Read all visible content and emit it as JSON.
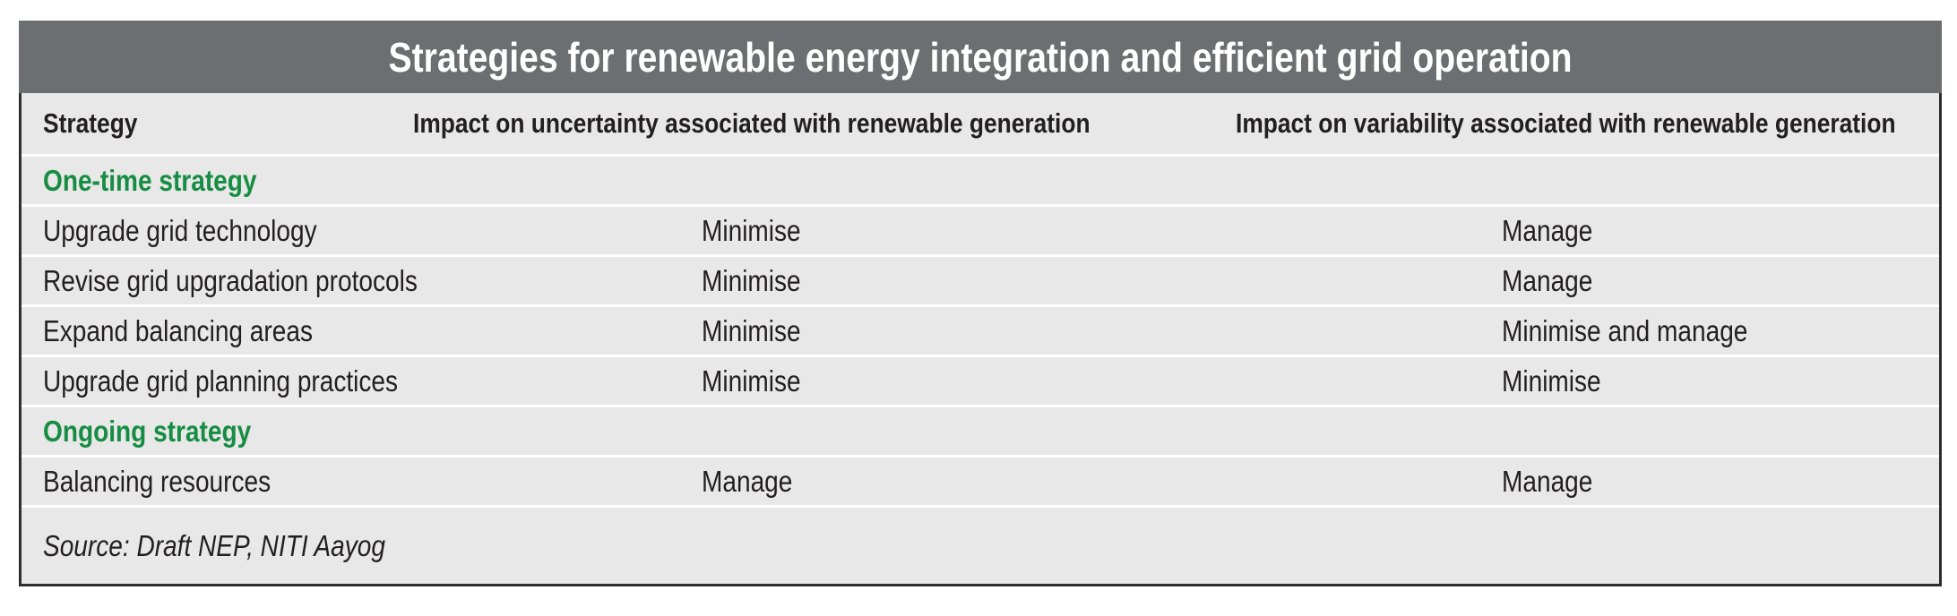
{
  "header": {
    "title": "Strategies for renewable energy integration and efficient grid operation"
  },
  "table": {
    "columns": {
      "strategy": "Strategy",
      "uncertainty": "Impact on uncertainty associated with renewable generation",
      "variability": "Impact on variability associated with renewable generation"
    },
    "rows": [
      {
        "type": "section",
        "label": "One-time strategy"
      },
      {
        "type": "data",
        "strategy": "Upgrade grid technology",
        "uncertainty": "Minimise",
        "variability": "Manage"
      },
      {
        "type": "data",
        "strategy": "Revise grid upgradation protocols",
        "uncertainty": "Minimise",
        "variability": "Manage"
      },
      {
        "type": "data",
        "strategy": "Expand balancing areas",
        "uncertainty": "Minimise",
        "variability": "Minimise and manage"
      },
      {
        "type": "data",
        "strategy": "Upgrade grid planning practices",
        "uncertainty": "Minimise",
        "variability": "Minimise"
      },
      {
        "type": "section",
        "label": "Ongoing strategy"
      },
      {
        "type": "data",
        "strategy": "Balancing resources",
        "uncertainty": "Manage",
        "variability": "Manage"
      }
    ],
    "source": "Source: Draft NEP, NITI Aayog"
  },
  "colors": {
    "title_bar_bg": "#6d6e71",
    "title_text": "#ffffff",
    "body_bg": "#e8e8e9",
    "section_heading": "#168d42",
    "body_text": "#221f20",
    "row_divider": "#ffffff",
    "panel_border": "#2e2d2c"
  }
}
